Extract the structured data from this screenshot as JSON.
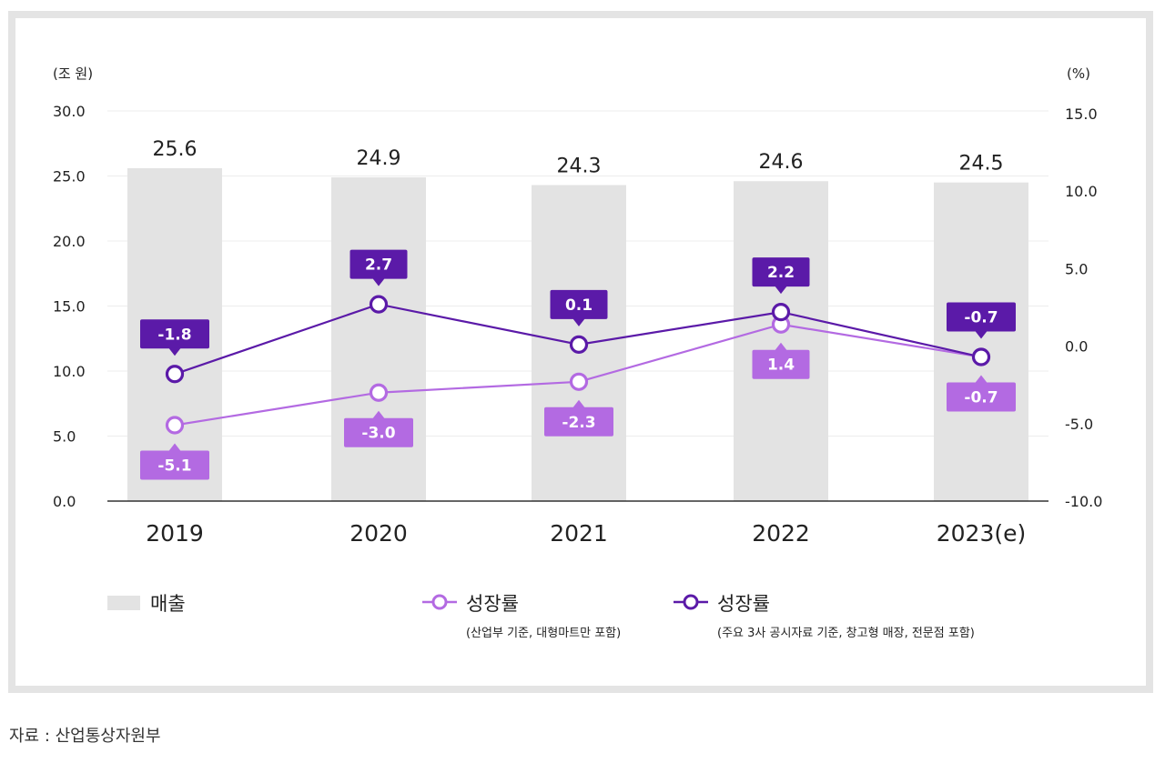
{
  "chart_data": {
    "type": "bar+line",
    "categories": [
      "2019",
      "2020",
      "2021",
      "2022",
      "2023(e)"
    ],
    "left_axis": {
      "unit_label": "(조 원)",
      "ticks": [
        "0.0",
        "5.0",
        "10.0",
        "15.0",
        "20.0",
        "25.0",
        "30.0"
      ],
      "range": [
        0,
        30
      ]
    },
    "right_axis": {
      "unit_label": "(%)",
      "ticks": [
        "-10.0",
        "-5.0",
        "0.0",
        "5.0",
        "10.0",
        "15.0"
      ],
      "range": [
        -10,
        15
      ]
    },
    "bars": {
      "name": "매출",
      "values": [
        25.6,
        24.9,
        24.3,
        24.6,
        24.5
      ],
      "labels": [
        "25.6",
        "24.9",
        "24.3",
        "24.6",
        "24.5"
      ],
      "color": "#e3e3e3"
    },
    "series": [
      {
        "name": "성장률",
        "note": "(산업부 기준, 대형마트만 포함)",
        "values": [
          -5.1,
          -3.0,
          -2.3,
          1.4,
          -0.7
        ],
        "labels": [
          "-5.1",
          "-3.0",
          "-2.3",
          "1.4",
          "-0.7"
        ],
        "label_position": "below",
        "color": "#b36ae2"
      },
      {
        "name": "성장률",
        "note": "(주요 3사 공시자료 기준, 창고형 매장, 전문점 포함)",
        "values": [
          -1.8,
          2.7,
          0.1,
          2.2,
          -0.7
        ],
        "labels": [
          "-1.8",
          "2.7",
          "0.1",
          "2.2",
          "-0.7"
        ],
        "label_position": "above",
        "color": "#5b1aa8"
      }
    ],
    "grid": true
  },
  "legend": {
    "bar_label": "매출",
    "line1_label": "성장률",
    "line1_note": "(산업부 기준, 대형마트만 포함)",
    "line2_label": "성장률",
    "line2_note": "(주요 3사 공시자료 기준, 창고형 매장, 전문점 포함)"
  },
  "source": "자료 : 산업통상자원부"
}
